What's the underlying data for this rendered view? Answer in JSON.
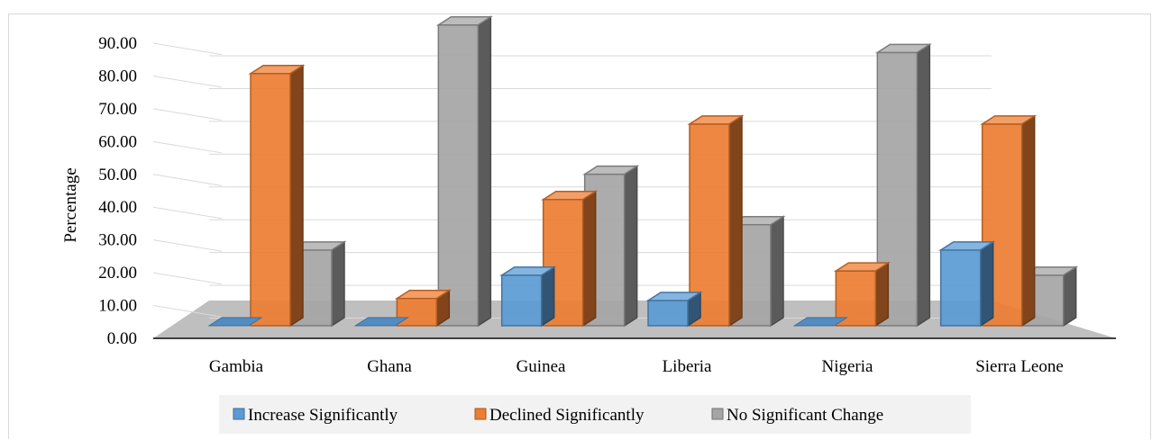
{
  "chart_data": {
    "type": "bar",
    "style": "3d-clustered-column",
    "title": "",
    "xlabel": "",
    "ylabel": "Percentage",
    "ylim": [
      0,
      90
    ],
    "yticks": [
      "0.00",
      "10.00",
      "20.00",
      "30.00",
      "40.00",
      "50.00",
      "60.00",
      "70.00",
      "80.00",
      "90.00"
    ],
    "categories": [
      "Gambia",
      "Ghana",
      "Guinea",
      "Liberia",
      "Nigeria",
      "Sierra Leone"
    ],
    "series": [
      {
        "name": "Increase Significantly",
        "values": [
          0,
          0,
          15.4,
          7.7,
          0,
          23.1
        ],
        "color": "#5b9bd5"
      },
      {
        "name": "Declined Significantly",
        "values": [
          76.9,
          8.3,
          38.5,
          61.5,
          16.7,
          61.5
        ],
        "color": "#ed7d31"
      },
      {
        "name": "No Significant Change",
        "values": [
          23.1,
          91.7,
          46.2,
          30.8,
          83.3,
          15.4
        ],
        "color": "#a5a5a5"
      }
    ],
    "grid": true,
    "legend": "bottom"
  }
}
